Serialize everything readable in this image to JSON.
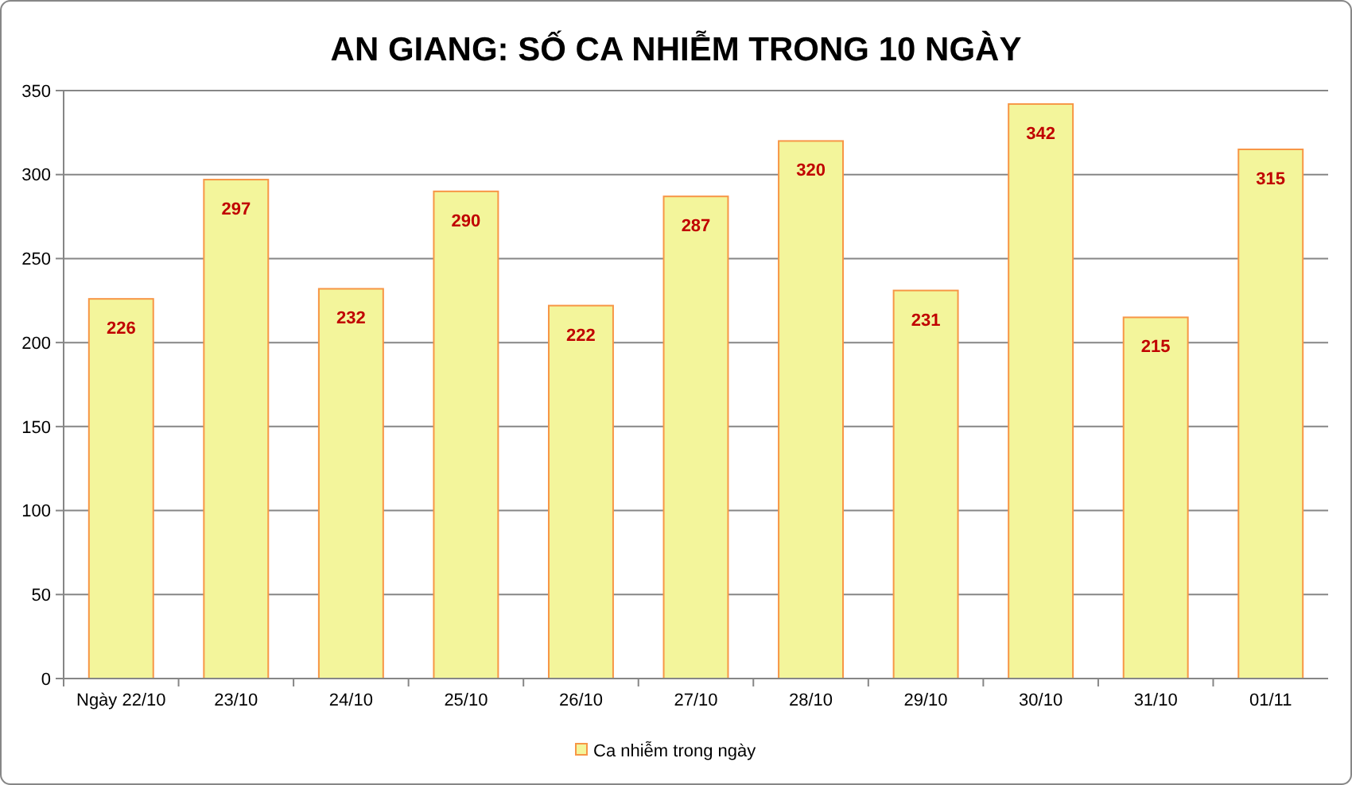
{
  "chart_data": {
    "type": "bar",
    "title": "AN GIANG: SỐ CA NHIỄM TRONG 10 NGÀY",
    "categories": [
      "Ngày 22/10",
      "23/10",
      "24/10",
      "25/10",
      "26/10",
      "27/10",
      "28/10",
      "29/10",
      "30/10",
      "31/10",
      "01/11"
    ],
    "series": [
      {
        "name": "Ca nhiễm trong ngày",
        "color": "#f3f59b",
        "values": [
          226,
          297,
          232,
          290,
          222,
          287,
          320,
          231,
          342,
          215,
          315
        ]
      }
    ],
    "ylim": [
      0,
      350
    ],
    "yticks": [
      0,
      50,
      100,
      150,
      200,
      250,
      300,
      350
    ],
    "grid": "y",
    "legend": "bottom",
    "data_labels": true
  }
}
